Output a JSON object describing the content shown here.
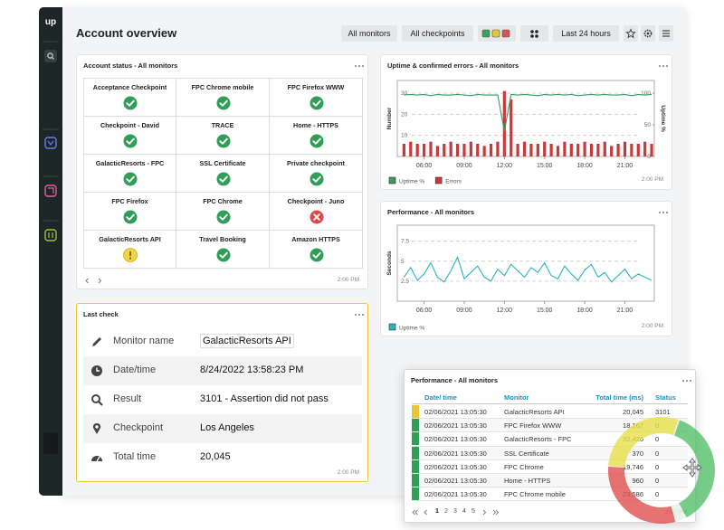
{
  "sidebar": {
    "logo": "up"
  },
  "header": {
    "title": "Account overview",
    "filters": [
      "All monitors",
      "All checkpoints"
    ],
    "time_range": "Last 24 hours"
  },
  "account_status": {
    "title": "Account status - All monitors",
    "monitors": [
      {
        "name": "Acceptance Checkpoint",
        "status": "ok"
      },
      {
        "name": "FPC Chrome mobile",
        "status": "ok"
      },
      {
        "name": "FPC Firefox WWW",
        "status": "ok"
      },
      {
        "name": "Checkpoint - David",
        "status": "ok"
      },
      {
        "name": "TRACE",
        "status": "ok"
      },
      {
        "name": "Home - HTTPS",
        "status": "ok"
      },
      {
        "name": "GalacticResorts - FPC",
        "status": "ok"
      },
      {
        "name": "SSL Certificate",
        "status": "ok"
      },
      {
        "name": "Private checkpoint",
        "status": "ok"
      },
      {
        "name": "FPC Firefox",
        "status": "ok"
      },
      {
        "name": "FPC Chrome",
        "status": "ok"
      },
      {
        "name": "Checkpoint - Juno",
        "status": "error"
      },
      {
        "name": "GalacticResorts API",
        "status": "warning"
      },
      {
        "name": "Travel Booking",
        "status": "ok"
      },
      {
        "name": "Amazon HTTPS",
        "status": "ok"
      }
    ],
    "timestamp": "2:00 PM"
  },
  "chart_data": [
    {
      "type": "line",
      "title": "Uptime & confirmed errors - All monitors",
      "y_label": "Number",
      "y2_label": "Uptime %",
      "x": [
        4.5,
        5,
        5.5,
        6,
        6.5,
        7,
        7.5,
        8,
        8.5,
        9,
        9.5,
        10,
        10.5,
        11,
        11.5,
        12,
        12.5,
        13,
        13.5,
        14,
        14.5,
        15,
        15.5,
        16,
        16.5,
        17,
        17.5,
        18,
        18.5,
        19,
        19.5,
        20,
        20.5,
        21,
        21.5,
        22,
        22.5,
        23
      ],
      "xlim": [
        4,
        23.2
      ],
      "xticks": [
        {
          "value": 6,
          "label": "06:00"
        },
        {
          "value": 9,
          "label": "09:00"
        },
        {
          "value": 12,
          "label": "12:00"
        },
        {
          "value": 15,
          "label": "15:00"
        },
        {
          "value": 18,
          "label": "18:00"
        },
        {
          "value": 21,
          "label": "21:00"
        }
      ],
      "ylim": [
        0,
        36
      ],
      "yticks": [
        10,
        20,
        30
      ],
      "y2lim": [
        0,
        120
      ],
      "y2ticks": [
        0,
        50,
        100
      ],
      "grid": true,
      "series": [
        {
          "name": "Uptime %",
          "type": "line",
          "axis": "y2",
          "color": "#3a9a62",
          "values": [
            97,
            98,
            97,
            98,
            96,
            98,
            97,
            97,
            98,
            97,
            96,
            98,
            97,
            97,
            97,
            40,
            98,
            97,
            98,
            97,
            96,
            98,
            97,
            98,
            97,
            98,
            96,
            97,
            98,
            97,
            98,
            97,
            97,
            98,
            96,
            98,
            97,
            98
          ]
        },
        {
          "name": "Errors",
          "type": "bar",
          "color": "#c9383a",
          "values": [
            6,
            7,
            6,
            6,
            7,
            5,
            6,
            7,
            6,
            6,
            7,
            6,
            5,
            6,
            7,
            31,
            27,
            6,
            7,
            6,
            6,
            7,
            6,
            5,
            7,
            6,
            6,
            7,
            6,
            6,
            7,
            5,
            6,
            7,
            6,
            6,
            7,
            6
          ]
        }
      ],
      "timestamp": "2:00 PM"
    },
    {
      "type": "line",
      "title": "Performance - All monitors",
      "y_label": "Seconds",
      "x": [
        4.5,
        5,
        5.5,
        6,
        6.5,
        7,
        7.5,
        8,
        8.5,
        9,
        9.5,
        10,
        10.5,
        11,
        11.5,
        12,
        12.5,
        13,
        13.5,
        14,
        14.5,
        15,
        15.5,
        16,
        16.5,
        17,
        17.5,
        18,
        18.5,
        19,
        19.5,
        20,
        20.5,
        21,
        21.5,
        22,
        22.5,
        23
      ],
      "xlim": [
        4,
        23.2
      ],
      "xticks": [
        {
          "value": 6,
          "label": "06:00"
        },
        {
          "value": 9,
          "label": "09:00"
        },
        {
          "value": 12,
          "label": "12:00"
        },
        {
          "value": 15,
          "label": "15:00"
        },
        {
          "value": 18,
          "label": "18:00"
        },
        {
          "value": 21,
          "label": "21:00"
        }
      ],
      "ylim": [
        0,
        9.5
      ],
      "yticks": [
        2.5,
        5,
        7.5
      ],
      "grid": true,
      "series": [
        {
          "name": "Uptime %",
          "type": "line",
          "color": "#2bb3c0",
          "values": [
            3,
            4.2,
            2.6,
            3.4,
            4.8,
            3,
            2.4,
            3.8,
            5.5,
            2.8,
            3.6,
            4.4,
            3,
            2.5,
            4,
            3.2,
            4.6,
            3.8,
            3,
            4.2,
            3.6,
            4.8,
            3.2,
            2.8,
            4.4,
            3.4,
            2.6,
            3.9,
            4.6,
            3,
            3.6,
            2.4,
            3.2,
            4,
            2.8,
            3.4,
            3,
            2.6
          ]
        }
      ],
      "timestamp": "2:00 PM"
    }
  ],
  "last_check": {
    "title": "Last check",
    "rows": [
      {
        "label": "Monitor name",
        "value": "GalacticResorts API"
      },
      {
        "label": "Date/time",
        "value": "8/24/2022 13:58:23 PM"
      },
      {
        "label": "Result",
        "value": "3101 - Assertion did not pass"
      },
      {
        "label": "Checkpoint",
        "value": "Los Angeles"
      },
      {
        "label": "Total time",
        "value": "20,045"
      }
    ],
    "timestamp": "2:00 PM"
  },
  "performance_table": {
    "title": "Performance - All monitors",
    "columns": [
      "Date/ time",
      "Monitor",
      "Total time (ms)",
      "Status"
    ],
    "rows": [
      [
        "02/06/2021 13:05:30",
        "GalacticResorts API",
        "20,045",
        "3101"
      ],
      [
        "02/06/2021 13:05:30",
        "FPC Firefox WWW",
        "18,167",
        "0"
      ],
      [
        "02/06/2021 13:05:30",
        "GalacticResorts - FPC",
        "32,426",
        "0"
      ],
      [
        "02/06/2021 13:05:30",
        "SSL Certificate",
        "370",
        "0"
      ],
      [
        "02/06/2021 13:05:30",
        "FPC Chrome",
        "19,746",
        "0"
      ],
      [
        "02/06/2021 13:05:30",
        "Home - HTTPS",
        "960",
        "0"
      ],
      [
        "02/06/2021 13:05:30",
        "FPC Chrome mobile",
        "23,586",
        "0"
      ]
    ],
    "row_status": [
      "warning",
      "ok",
      "ok",
      "ok",
      "ok",
      "ok",
      "ok"
    ],
    "pages": [
      "1",
      "2",
      "3",
      "4",
      "5"
    ],
    "timestamp": "2:00 PM"
  }
}
